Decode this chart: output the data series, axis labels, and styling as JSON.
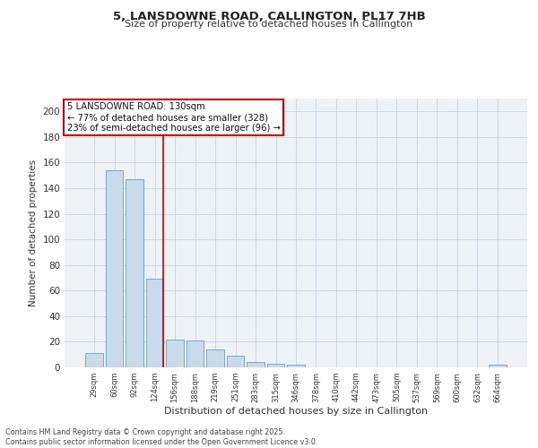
{
  "title": "5, LANSDOWNE ROAD, CALLINGTON, PL17 7HB",
  "subtitle": "Size of property relative to detached houses in Callington",
  "xlabel": "Distribution of detached houses by size in Callington",
  "ylabel": "Number of detached properties",
  "categories": [
    "29sqm",
    "60sqm",
    "92sqm",
    "124sqm",
    "156sqm",
    "188sqm",
    "219sqm",
    "251sqm",
    "283sqm",
    "315sqm",
    "346sqm",
    "378sqm",
    "410sqm",
    "442sqm",
    "473sqm",
    "505sqm",
    "537sqm",
    "569sqm",
    "600sqm",
    "632sqm",
    "664sqm"
  ],
  "values": [
    11,
    154,
    147,
    69,
    22,
    21,
    14,
    9,
    4,
    3,
    2,
    0,
    0,
    0,
    0,
    0,
    0,
    0,
    0,
    0,
    2
  ],
  "bar_color": "#c9daea",
  "bar_edge_color": "#7aaac8",
  "grid_color": "#c8d4dc",
  "background_color": "#edf2f7",
  "red_line_index": 3,
  "annotation_text": "5 LANSDOWNE ROAD: 130sqm\n← 77% of detached houses are smaller (328)\n23% of semi-detached houses are larger (96) →",
  "annotation_box_facecolor": "#ffffff",
  "annotation_box_edgecolor": "#cc0000",
  "red_line_color": "#cc0000",
  "ylim": [
    0,
    210
  ],
  "yticks": [
    0,
    20,
    40,
    60,
    80,
    100,
    120,
    140,
    160,
    180,
    200
  ],
  "footer_line1": "Contains HM Land Registry data © Crown copyright and database right 2025.",
  "footer_line2": "Contains public sector information licensed under the Open Government Licence v3.0."
}
